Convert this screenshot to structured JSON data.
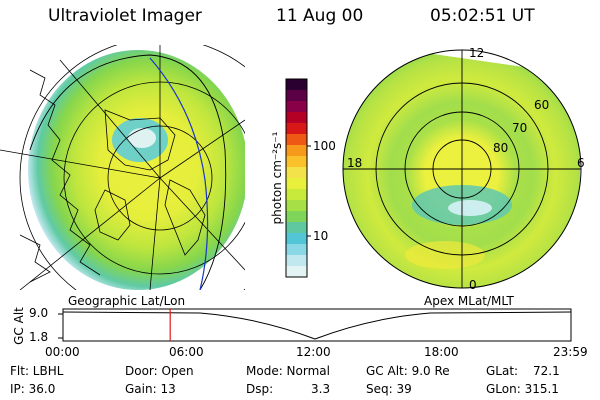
{
  "header": {
    "instrument": "Ultraviolet Imager",
    "date": "11 Aug 00",
    "time": "05:02:51 UT"
  },
  "left_panel": {
    "caption": "Geographic Lat/Lon"
  },
  "right_panel": {
    "caption": "Apex MLat/MLT",
    "mlt_labels": [
      "12",
      "6",
      "0",
      "18"
    ],
    "lat_labels": [
      "60",
      "70",
      "80"
    ]
  },
  "colorbar": {
    "unit_label": "photon cm⁻²s⁻¹",
    "ticks": [
      "100",
      "10"
    ],
    "colors": [
      "#2a0030",
      "#5c0045",
      "#8a0048",
      "#b40025",
      "#d81818",
      "#ee5a16",
      "#f79a1c",
      "#fbc12a",
      "#f4e24a",
      "#e9f03c",
      "#c8ea3a",
      "#a7e046",
      "#7fd45a",
      "#5fc8a0",
      "#52c6d6",
      "#8ad8e6",
      "#c0e8ee",
      "#e4f3f3"
    ]
  },
  "timeline": {
    "axis_label": "GC Alt",
    "y_ticks": [
      "9.0",
      "1.8"
    ],
    "x_ticks": [
      "00:00",
      "06:00",
      "12:00",
      "18:00",
      "23:59"
    ],
    "current_time_fraction": 0.211
  },
  "status": {
    "flt": "Flt: LBHL",
    "ip": "IP: 36.0",
    "door": "Door: Open",
    "gain": "Gain: 13",
    "mode": "Mode: Normal",
    "dsp": "Dsp:",
    "dsp_val": "3.3",
    "gcalt": "GC Alt: 9.0 Re",
    "seq": "Seq: 39",
    "glat": "GLat:",
    "glat_val": "72.1",
    "glon": "GLon: 315.1"
  }
}
